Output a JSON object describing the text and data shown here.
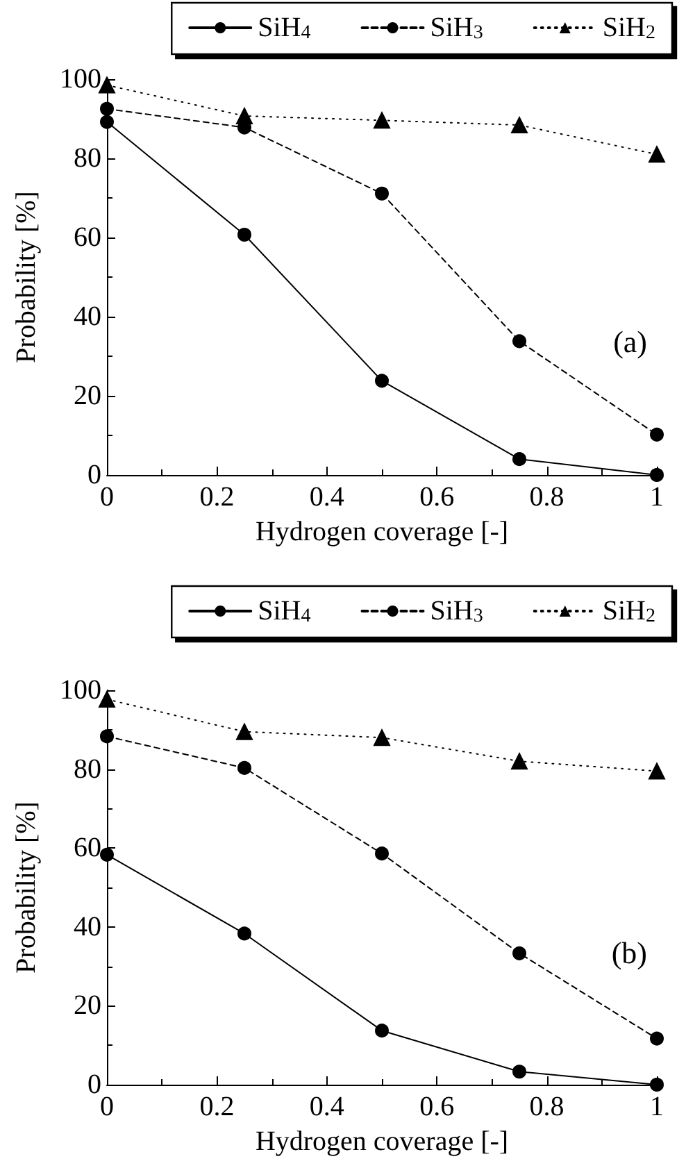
{
  "chart_data": [
    {
      "type": "line",
      "xlabel": "Hydrogen coverage [-]",
      "ylabel": "Probability [%]",
      "annotations": [
        "(a)"
      ],
      "x": [
        0,
        0.25,
        0.5,
        0.75,
        1
      ],
      "xlim": [
        0,
        1
      ],
      "xticks": [
        0,
        0.2,
        0.4,
        0.6,
        0.8,
        1
      ],
      "ylim": [
        0,
        100
      ],
      "yticks": [
        0,
        20,
        40,
        60,
        80,
        100
      ],
      "grid": false,
      "legend": "top right",
      "series": [
        {
          "name": "SiH$_{4}$",
          "color": "#000000",
          "marker": "circle",
          "line_style": "solid",
          "values": [
            89.2,
            60.7,
            23.8,
            4.0,
            0
          ]
        },
        {
          "name": "SiH$_{3}$",
          "color": "#000000",
          "marker": "circle",
          "line_style": "dashed",
          "values": [
            92.5,
            87.8,
            71.1,
            33.8,
            10.2
          ]
        },
        {
          "name": "SiH$_{2}$",
          "color": "#000000",
          "marker": "triangle",
          "line_style": "dotted",
          "values": [
            98.5,
            90.7,
            89.6,
            88.4,
            81.0
          ]
        }
      ]
    },
    {
      "type": "line",
      "xlabel": "Hydrogen coverage [-]",
      "ylabel": "Probability [%]",
      "annotations": [
        "(b)"
      ],
      "x": [
        0,
        0.25,
        0.5,
        0.75,
        1
      ],
      "xlim": [
        0,
        1
      ],
      "xticks": [
        0,
        0.2,
        0.4,
        0.6,
        0.8,
        1
      ],
      "ylim": [
        0,
        100
      ],
      "yticks": [
        0,
        20,
        40,
        60,
        80,
        100
      ],
      "grid": false,
      "legend": "top right",
      "series": [
        {
          "name": "SiH$_{4}$",
          "color": "#000000",
          "marker": "circle",
          "line_style": "solid",
          "values": [
            58.3,
            38.3,
            13.7,
            3.3,
            0
          ]
        },
        {
          "name": "SiH$_{3}$",
          "color": "#000000",
          "marker": "circle",
          "line_style": "dashed",
          "values": [
            88.3,
            80.3,
            58.6,
            33.3,
            11.7
          ]
        },
        {
          "name": "SiH$_{2}$",
          "color": "#000000",
          "marker": "triangle",
          "line_style": "dotted",
          "values": [
            97.7,
            89.5,
            88.0,
            82.0,
            79.5
          ]
        }
      ]
    }
  ]
}
